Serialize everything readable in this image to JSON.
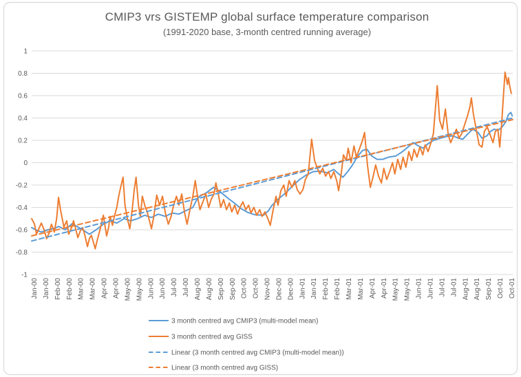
{
  "chart_data": {
    "type": "line",
    "title": "CMIP3 vrs GISTEMP global surface temperature comparison",
    "subtitle": "(1991-2020 base, 3-month centred running average)",
    "ylim": [
      -1,
      1
    ],
    "ytick_step": 0.2,
    "yticks": [
      "1",
      "0.8",
      "0.6",
      "0.4",
      "0.2",
      "0",
      "-0.2",
      "-0.4",
      "-0.6",
      "-0.8",
      "-1"
    ],
    "xticklabels": [
      "Jan-00",
      "Jan-00",
      "Feb-00",
      "Feb-00",
      "Mar-00",
      "Mar-00",
      "Apr-00",
      "Apr-00",
      "May-00",
      "May-00",
      "Jun-00",
      "Jun-00",
      "Jul-00",
      "Jul-00",
      "Aug-00",
      "Aug-00",
      "Sep-00",
      "Sep-00",
      "Oct-00",
      "Oct-00",
      "Nov-00",
      "Dec-00",
      "Dec-00",
      "Jan-01",
      "Jan-01",
      "Feb-01",
      "Feb-01",
      "Mar-01",
      "Mar-01",
      "Apr-01",
      "Apr-01",
      "May-01",
      "May-01",
      "Jun-01",
      "Jun-01",
      "Jul-01",
      "Jul-01",
      "Aug-01",
      "Aug-01",
      "Sep-01",
      "Oct-01",
      "Oct-01"
    ],
    "grid": "horizontal",
    "legend_position": "bottom",
    "colors": {
      "cmip3": "#5B9BD5",
      "giss": "#ED7D31",
      "gridline": "#D9D9D9",
      "border": "#D9D9D9",
      "text": "#595959",
      "background": "#FFFFFF"
    },
    "series": [
      {
        "name": "3 month centred avg CMIP3 (multi-model mean)",
        "color": "#5B9BD5",
        "style": "solid",
        "points": [
          [
            0.0,
            -0.58
          ],
          [
            0.013,
            -0.61
          ],
          [
            0.02,
            -0.62
          ],
          [
            0.034,
            -0.6
          ],
          [
            0.049,
            -0.585
          ],
          [
            0.056,
            -0.57
          ],
          [
            0.07,
            -0.6
          ],
          [
            0.084,
            -0.545
          ],
          [
            0.094,
            -0.57
          ],
          [
            0.106,
            -0.6
          ],
          [
            0.12,
            -0.64
          ],
          [
            0.134,
            -0.6
          ],
          [
            0.149,
            -0.55
          ],
          [
            0.163,
            -0.52
          ],
          [
            0.177,
            -0.54
          ],
          [
            0.192,
            -0.5
          ],
          [
            0.206,
            -0.52
          ],
          [
            0.22,
            -0.5
          ],
          [
            0.235,
            -0.47
          ],
          [
            0.249,
            -0.49
          ],
          [
            0.263,
            -0.46
          ],
          [
            0.278,
            -0.48
          ],
          [
            0.292,
            -0.45
          ],
          [
            0.306,
            -0.46
          ],
          [
            0.32,
            -0.43
          ],
          [
            0.335,
            -0.4
          ],
          [
            0.342,
            -0.34
          ],
          [
            0.349,
            -0.3
          ],
          [
            0.363,
            -0.27
          ],
          [
            0.378,
            -0.22
          ],
          [
            0.385,
            -0.24
          ],
          [
            0.392,
            -0.26
          ],
          [
            0.406,
            -0.31
          ],
          [
            0.421,
            -0.36
          ],
          [
            0.435,
            -0.41
          ],
          [
            0.449,
            -0.445
          ],
          [
            0.464,
            -0.465
          ],
          [
            0.482,
            -0.47
          ],
          [
            0.492,
            -0.43
          ],
          [
            0.499,
            -0.385
          ],
          [
            0.514,
            -0.32
          ],
          [
            0.528,
            -0.27
          ],
          [
            0.542,
            -0.21
          ],
          [
            0.557,
            -0.15
          ],
          [
            0.571,
            -0.11
          ],
          [
            0.585,
            -0.08
          ],
          [
            0.599,
            -0.075
          ],
          [
            0.614,
            -0.09
          ],
          [
            0.628,
            -0.06
          ],
          [
            0.638,
            -0.1
          ],
          [
            0.647,
            -0.13
          ],
          [
            0.657,
            -0.08
          ],
          [
            0.667,
            -0.02
          ],
          [
            0.678,
            0.06
          ],
          [
            0.688,
            0.11
          ],
          [
            0.697,
            0.12
          ],
          [
            0.707,
            0.06
          ],
          [
            0.718,
            0.03
          ],
          [
            0.73,
            0.03
          ],
          [
            0.742,
            0.05
          ],
          [
            0.757,
            0.06
          ],
          [
            0.771,
            0.1
          ],
          [
            0.785,
            0.15
          ],
          [
            0.793,
            0.18
          ],
          [
            0.804,
            0.15
          ],
          [
            0.814,
            0.13
          ],
          [
            0.824,
            0.17
          ],
          [
            0.835,
            0.2
          ],
          [
            0.85,
            0.22
          ],
          [
            0.864,
            0.235
          ],
          [
            0.876,
            0.24
          ],
          [
            0.887,
            0.22
          ],
          [
            0.896,
            0.21
          ],
          [
            0.907,
            0.26
          ],
          [
            0.917,
            0.3
          ],
          [
            0.928,
            0.27
          ],
          [
            0.936,
            0.22
          ],
          [
            0.946,
            0.24
          ],
          [
            0.954,
            0.28
          ],
          [
            0.961,
            0.3
          ],
          [
            0.97,
            0.29
          ],
          [
            0.978,
            0.32
          ],
          [
            0.986,
            0.37
          ],
          [
            0.991,
            0.43
          ],
          [
            0.996,
            0.45
          ],
          [
            0.999,
            0.42
          ]
        ]
      },
      {
        "name": "3 month centred  avg GISS",
        "color": "#ED7D31",
        "style": "solid",
        "points": [
          [
            0.0,
            -0.5
          ],
          [
            0.006,
            -0.55
          ],
          [
            0.01,
            -0.64
          ],
          [
            0.016,
            -0.58
          ],
          [
            0.02,
            -0.54
          ],
          [
            0.026,
            -0.6
          ],
          [
            0.031,
            -0.68
          ],
          [
            0.037,
            -0.62
          ],
          [
            0.041,
            -0.55
          ],
          [
            0.047,
            -0.62
          ],
          [
            0.052,
            -0.5
          ],
          [
            0.056,
            -0.31
          ],
          [
            0.06,
            -0.42
          ],
          [
            0.067,
            -0.575
          ],
          [
            0.073,
            -0.52
          ],
          [
            0.077,
            -0.64
          ],
          [
            0.083,
            -0.58
          ],
          [
            0.087,
            -0.52
          ],
          [
            0.092,
            -0.6
          ],
          [
            0.096,
            -0.67
          ],
          [
            0.102,
            -0.6
          ],
          [
            0.106,
            -0.58
          ],
          [
            0.11,
            -0.64
          ],
          [
            0.116,
            -0.75
          ],
          [
            0.12,
            -0.68
          ],
          [
            0.124,
            -0.65
          ],
          [
            0.129,
            -0.72
          ],
          [
            0.132,
            -0.77
          ],
          [
            0.137,
            -0.68
          ],
          [
            0.142,
            -0.6
          ],
          [
            0.149,
            -0.47
          ],
          [
            0.152,
            -0.55
          ],
          [
            0.156,
            -0.655
          ],
          [
            0.16,
            -0.58
          ],
          [
            0.163,
            -0.48
          ],
          [
            0.168,
            -0.56
          ],
          [
            0.172,
            -0.48
          ],
          [
            0.177,
            -0.4
          ],
          [
            0.181,
            -0.3
          ],
          [
            0.185,
            -0.22
          ],
          [
            0.19,
            -0.13
          ],
          [
            0.194,
            -0.38
          ],
          [
            0.199,
            -0.5
          ],
          [
            0.204,
            -0.59
          ],
          [
            0.209,
            -0.42
          ],
          [
            0.213,
            -0.25
          ],
          [
            0.217,
            -0.13
          ],
          [
            0.222,
            -0.38
          ],
          [
            0.226,
            -0.48
          ],
          [
            0.23,
            -0.3
          ],
          [
            0.235,
            -0.38
          ],
          [
            0.24,
            -0.44
          ],
          [
            0.249,
            -0.59
          ],
          [
            0.254,
            -0.48
          ],
          [
            0.26,
            -0.29
          ],
          [
            0.266,
            -0.38
          ],
          [
            0.272,
            -0.3
          ],
          [
            0.278,
            -0.45
          ],
          [
            0.284,
            -0.55
          ],
          [
            0.29,
            -0.48
          ],
          [
            0.295,
            -0.38
          ],
          [
            0.301,
            -0.3
          ],
          [
            0.306,
            -0.38
          ],
          [
            0.312,
            -0.28
          ],
          [
            0.318,
            -0.45
          ],
          [
            0.323,
            -0.55
          ],
          [
            0.329,
            -0.42
          ],
          [
            0.335,
            -0.3
          ],
          [
            0.34,
            -0.16
          ],
          [
            0.345,
            -0.31
          ],
          [
            0.35,
            -0.42
          ],
          [
            0.356,
            -0.35
          ],
          [
            0.362,
            -0.28
          ],
          [
            0.368,
            -0.4
          ],
          [
            0.373,
            -0.33
          ],
          [
            0.379,
            -0.28
          ],
          [
            0.383,
            -0.18
          ],
          [
            0.388,
            -0.28
          ],
          [
            0.393,
            -0.4
          ],
          [
            0.399,
            -0.33
          ],
          [
            0.405,
            -0.42
          ],
          [
            0.411,
            -0.36
          ],
          [
            0.416,
            -0.44
          ],
          [
            0.422,
            -0.38
          ],
          [
            0.428,
            -0.46
          ],
          [
            0.433,
            -0.4
          ],
          [
            0.439,
            -0.35
          ],
          [
            0.445,
            -0.42
          ],
          [
            0.451,
            -0.38
          ],
          [
            0.456,
            -0.45
          ],
          [
            0.462,
            -0.4
          ],
          [
            0.468,
            -0.47
          ],
          [
            0.474,
            -0.42
          ],
          [
            0.479,
            -0.48
          ],
          [
            0.485,
            -0.44
          ],
          [
            0.491,
            -0.5
          ],
          [
            0.496,
            -0.56
          ],
          [
            0.502,
            -0.42
          ],
          [
            0.508,
            -0.3
          ],
          [
            0.512,
            -0.38
          ],
          [
            0.518,
            -0.25
          ],
          [
            0.524,
            -0.2
          ],
          [
            0.529,
            -0.3
          ],
          [
            0.535,
            -0.16
          ],
          [
            0.541,
            -0.22
          ],
          [
            0.547,
            -0.16
          ],
          [
            0.552,
            -0.24
          ],
          [
            0.558,
            -0.28
          ],
          [
            0.564,
            -0.24
          ],
          [
            0.569,
            -0.15
          ],
          [
            0.575,
            -0.1
          ],
          [
            0.582,
            0.21
          ],
          [
            0.588,
            0.02
          ],
          [
            0.594,
            -0.05
          ],
          [
            0.599,
            -0.1
          ],
          [
            0.605,
            -0.05
          ],
          [
            0.611,
            -0.12
          ],
          [
            0.617,
            -0.08
          ],
          [
            0.622,
            -0.14
          ],
          [
            0.628,
            -0.08
          ],
          [
            0.634,
            -0.16
          ],
          [
            0.638,
            -0.25
          ],
          [
            0.644,
            -0.08
          ],
          [
            0.648,
            0.07
          ],
          [
            0.654,
            0.02
          ],
          [
            0.658,
            0.13
          ],
          [
            0.664,
            0.0
          ],
          [
            0.67,
            0.15
          ],
          [
            0.675,
            0.05
          ],
          [
            0.681,
            0.12
          ],
          [
            0.687,
            0.19
          ],
          [
            0.692,
            0.27
          ],
          [
            0.698,
            -0.02
          ],
          [
            0.704,
            -0.22
          ],
          [
            0.71,
            -0.12
          ],
          [
            0.715,
            -0.02
          ],
          [
            0.721,
            -0.12
          ],
          [
            0.727,
            -0.18
          ],
          [
            0.732,
            -0.05
          ],
          [
            0.738,
            -0.15
          ],
          [
            0.744,
            -0.08
          ],
          [
            0.75,
            0.0
          ],
          [
            0.755,
            -0.1
          ],
          [
            0.761,
            0.03
          ],
          [
            0.767,
            -0.06
          ],
          [
            0.772,
            0.05
          ],
          [
            0.778,
            -0.04
          ],
          [
            0.784,
            0.1
          ],
          [
            0.79,
            0.02
          ],
          [
            0.795,
            0.12
          ],
          [
            0.801,
            0.05
          ],
          [
            0.807,
            0.14
          ],
          [
            0.813,
            0.07
          ],
          [
            0.818,
            0.16
          ],
          [
            0.824,
            0.1
          ],
          [
            0.83,
            0.18
          ],
          [
            0.835,
            0.26
          ],
          [
            0.843,
            0.69
          ],
          [
            0.848,
            0.38
          ],
          [
            0.854,
            0.3
          ],
          [
            0.86,
            0.48
          ],
          [
            0.866,
            0.25
          ],
          [
            0.871,
            0.18
          ],
          [
            0.877,
            0.24
          ],
          [
            0.883,
            0.3
          ],
          [
            0.888,
            0.22
          ],
          [
            0.894,
            0.26
          ],
          [
            0.9,
            0.34
          ],
          [
            0.906,
            0.42
          ],
          [
            0.911,
            0.5
          ],
          [
            0.914,
            0.58
          ],
          [
            0.918,
            0.44
          ],
          [
            0.924,
            0.3
          ],
          [
            0.93,
            0.16
          ],
          [
            0.936,
            0.14
          ],
          [
            0.941,
            0.28
          ],
          [
            0.947,
            0.32
          ],
          [
            0.953,
            0.25
          ],
          [
            0.959,
            0.18
          ],
          [
            0.964,
            0.28
          ],
          [
            0.969,
            0.3
          ],
          [
            0.973,
            0.14
          ],
          [
            0.977,
            0.35
          ],
          [
            0.981,
            0.62
          ],
          [
            0.984,
            0.81
          ],
          [
            0.989,
            0.7
          ],
          [
            0.991,
            0.76
          ],
          [
            0.994,
            0.68
          ],
          [
            0.997,
            0.62
          ]
        ]
      },
      {
        "name": "Linear (3 month centred avg CMIP3 (multi-model mean))",
        "color": "#5B9BD5",
        "style": "dashed",
        "points": [
          [
            0.0,
            -0.7
          ],
          [
            1.0,
            0.4
          ]
        ]
      },
      {
        "name": "Linear (3 month centred  avg GISS)",
        "color": "#ED7D31",
        "style": "dashed",
        "points": [
          [
            0.0,
            -0.655
          ],
          [
            1.0,
            0.385
          ]
        ]
      }
    ]
  }
}
